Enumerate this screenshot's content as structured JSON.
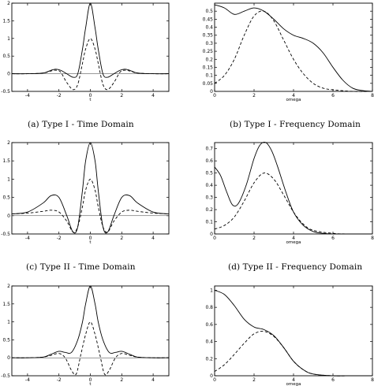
{
  "chart_data": [
    {
      "type": "line",
      "id": "a",
      "title": "(a) Type I - Time Domain",
      "xlabel": "t",
      "ylabel": "",
      "xlim": [
        -5,
        5
      ],
      "ylim": [
        -0.5,
        2
      ],
      "xticks": [
        -4,
        -2,
        0,
        2,
        4
      ],
      "xtick_labels": [
        "-4",
        "-2",
        "0",
        "2",
        "4"
      ],
      "yticks": [
        -0.5,
        0,
        0.5,
        1,
        1.5,
        2
      ],
      "ytick_labels": [
        "-0.5",
        "0",
        "0.5",
        "1",
        "1.5",
        "2"
      ],
      "grid": false,
      "series": [
        {
          "style": "solid",
          "x": [
            -5,
            -4,
            -3,
            -2.5,
            -2.2,
            -1.9,
            -1.5,
            -1.1,
            -0.8,
            -0.5,
            -0.3,
            0,
            0.3,
            0.5,
            0.8,
            1.1,
            1.5,
            1.9,
            2.2,
            2.5,
            3,
            4,
            5
          ],
          "values": [
            0,
            0,
            0.02,
            0.1,
            0.13,
            0.1,
            0,
            -0.1,
            0,
            0.7,
            1.3,
            2.0,
            1.3,
            0.7,
            0,
            -0.1,
            0,
            0.1,
            0.13,
            0.1,
            0.02,
            0,
            0
          ]
        },
        {
          "style": "dashed",
          "x": [
            -5,
            -4,
            -3,
            -2.5,
            -2.2,
            -1.9,
            -1.5,
            -1.1,
            -0.8,
            -0.5,
            -0.3,
            0,
            0.3,
            0.5,
            0.8,
            1.1,
            1.5,
            1.9,
            2.2,
            2.5,
            3,
            4,
            5
          ],
          "values": [
            0,
            0,
            0.02,
            0.08,
            0.1,
            0.05,
            -0.25,
            -0.45,
            -0.3,
            0.3,
            0.7,
            1.0,
            0.7,
            0.3,
            -0.3,
            -0.45,
            -0.25,
            0.05,
            0.1,
            0.08,
            0.02,
            0,
            0
          ]
        }
      ]
    },
    {
      "type": "line",
      "id": "b",
      "title": "(b) Type I - Frequency Domain",
      "xlabel": "omega",
      "ylabel": "",
      "xlim": [
        0,
        8
      ],
      "ylim": [
        0,
        0.55
      ],
      "xticks": [
        0,
        2,
        4,
        6,
        8
      ],
      "xtick_labels": [
        "0",
        "2",
        "4",
        "6",
        "8"
      ],
      "yticks": [
        0,
        0.05,
        0.1,
        0.15,
        0.2,
        0.25,
        0.3,
        0.35,
        0.4,
        0.45,
        0.5
      ],
      "ytick_labels": [
        "0",
        "0.05",
        "0.1",
        "0.15",
        "0.2",
        "0.25",
        "0.3",
        "0.35",
        "0.4",
        "0.45",
        "0.5"
      ],
      "grid": false,
      "series": [
        {
          "style": "solid",
          "x": [
            0,
            0.5,
            1,
            1.5,
            2,
            2.5,
            3,
            3.5,
            4,
            4.5,
            5,
            5.5,
            6,
            6.5,
            7,
            7.5,
            8
          ],
          "values": [
            0.54,
            0.52,
            0.48,
            0.5,
            0.52,
            0.5,
            0.45,
            0.39,
            0.35,
            0.33,
            0.3,
            0.24,
            0.15,
            0.07,
            0.02,
            0.005,
            0
          ]
        },
        {
          "style": "dashed",
          "x": [
            0,
            0.5,
            1,
            1.5,
            2,
            2.5,
            3,
            3.5,
            4,
            4.5,
            5,
            5.5,
            6,
            7,
            8
          ],
          "values": [
            0.05,
            0.1,
            0.2,
            0.35,
            0.47,
            0.5,
            0.44,
            0.32,
            0.2,
            0.11,
            0.05,
            0.02,
            0.01,
            0,
            0
          ]
        }
      ]
    },
    {
      "type": "line",
      "id": "c",
      "title": "(c) Type II - Time Domain",
      "xlabel": "t",
      "ylabel": "",
      "xlim": [
        -5,
        5
      ],
      "ylim": [
        -0.5,
        2
      ],
      "xticks": [
        -4,
        -2,
        0,
        2,
        4
      ],
      "xtick_labels": [
        "-4",
        "-2",
        "0",
        "2",
        "4"
      ],
      "yticks": [
        -0.5,
        0,
        0.5,
        1,
        1.5,
        2
      ],
      "ytick_labels": [
        "-0.5",
        "0",
        "0.5",
        "1",
        "1.5",
        "2"
      ],
      "grid": false,
      "series": [
        {
          "style": "solid",
          "x": [
            -5,
            -4,
            -3,
            -2.5,
            -2,
            -1.5,
            -1.1,
            -0.8,
            -0.5,
            -0.3,
            0,
            0.3,
            0.5,
            0.8,
            1.1,
            1.5,
            2,
            2.5,
            3,
            4,
            5
          ],
          "values": [
            0.05,
            0.1,
            0.35,
            0.55,
            0.5,
            0,
            -0.45,
            -0.3,
            0.7,
            1.5,
            2.0,
            1.5,
            0.7,
            -0.3,
            -0.45,
            0,
            0.5,
            0.55,
            0.35,
            0.1,
            0.05
          ]
        },
        {
          "style": "dashed",
          "x": [
            -5,
            -4,
            -3,
            -2.5,
            -2,
            -1.5,
            -1.1,
            -0.8,
            -0.5,
            -0.3,
            0,
            0.3,
            0.5,
            0.8,
            1.1,
            1.5,
            2,
            2.5,
            3,
            4,
            5
          ],
          "values": [
            0.05,
            0.07,
            0.12,
            0.15,
            0.1,
            -0.15,
            -0.45,
            -0.3,
            0.25,
            0.7,
            1.0,
            0.7,
            0.25,
            -0.3,
            -0.45,
            -0.15,
            0.1,
            0.15,
            0.12,
            0.07,
            0.05
          ]
        }
      ]
    },
    {
      "type": "line",
      "id": "d",
      "title": "(d) Type II - Frequency Domain",
      "xlabel": "omega",
      "ylabel": "",
      "xlim": [
        0,
        8
      ],
      "ylim": [
        0,
        0.75
      ],
      "xticks": [
        0,
        2,
        4,
        6,
        8
      ],
      "xtick_labels": [
        "0",
        "2",
        "4",
        "6",
        "8"
      ],
      "yticks": [
        0,
        0.1,
        0.2,
        0.3,
        0.4,
        0.5,
        0.6,
        0.7
      ],
      "ytick_labels": [
        "0",
        "0.1",
        "0.2",
        "0.3",
        "0.4",
        "0.5",
        "0.6",
        "0.7"
      ],
      "grid": false,
      "series": [
        {
          "style": "solid",
          "x": [
            0,
            0.3,
            0.6,
            0.9,
            1.2,
            1.6,
            2,
            2.3,
            2.6,
            2.9,
            3.2,
            3.6,
            4,
            4.5,
            5,
            5.5,
            6,
            7,
            8
          ],
          "values": [
            0.55,
            0.48,
            0.35,
            0.24,
            0.25,
            0.4,
            0.62,
            0.73,
            0.75,
            0.68,
            0.55,
            0.35,
            0.18,
            0.07,
            0.02,
            0.005,
            0,
            0,
            0
          ]
        },
        {
          "style": "dashed",
          "x": [
            0,
            0.5,
            1,
            1.5,
            2,
            2.5,
            3,
            3.5,
            4,
            4.5,
            5,
            6,
            7,
            8
          ],
          "values": [
            0.04,
            0.07,
            0.14,
            0.27,
            0.42,
            0.5,
            0.45,
            0.32,
            0.18,
            0.08,
            0.03,
            0.005,
            0,
            0
          ]
        }
      ]
    },
    {
      "type": "line",
      "id": "e",
      "title": "",
      "xlabel": "t",
      "ylabel": "",
      "xlim": [
        -5,
        5
      ],
      "ylim": [
        -0.5,
        2
      ],
      "xticks": [
        -4,
        -2,
        0,
        2,
        4
      ],
      "xtick_labels": [
        "-4",
        "-2",
        "0",
        "2",
        "4"
      ],
      "yticks": [
        -0.5,
        0,
        0.5,
        1,
        1.5,
        2
      ],
      "ytick_labels": [
        "-0.5",
        "0",
        "0.5",
        "1",
        "1.5",
        "2"
      ],
      "grid": false,
      "series": [
        {
          "style": "solid",
          "x": [
            -5,
            -4,
            -3,
            -2.5,
            -2,
            -1.6,
            -1.2,
            -0.8,
            -0.5,
            -0.3,
            0,
            0.3,
            0.5,
            0.8,
            1.2,
            1.6,
            2,
            2.5,
            3,
            4,
            5
          ],
          "values": [
            0,
            0,
            0.02,
            0.1,
            0.18,
            0.15,
            0.15,
            0.5,
            1.0,
            1.5,
            2.0,
            1.5,
            1.0,
            0.5,
            0.15,
            0.15,
            0.18,
            0.1,
            0.02,
            0,
            0
          ]
        },
        {
          "style": "dashed",
          "x": [
            -5,
            -4,
            -3,
            -2.5,
            -2,
            -1.6,
            -1.2,
            -0.9,
            -0.6,
            -0.3,
            0,
            0.3,
            0.6,
            0.9,
            1.2,
            1.6,
            2,
            2.5,
            3,
            4,
            5
          ],
          "values": [
            0,
            0,
            0.02,
            0.07,
            0.12,
            0,
            -0.35,
            -0.45,
            0.1,
            0.65,
            1.0,
            0.65,
            0.1,
            -0.45,
            -0.35,
            0,
            0.12,
            0.07,
            0.02,
            0,
            0
          ]
        }
      ]
    },
    {
      "type": "line",
      "id": "f",
      "title": "",
      "xlabel": "omega",
      "ylabel": "",
      "xlim": [
        0,
        8
      ],
      "ylim": [
        0,
        1.05
      ],
      "xticks": [
        0,
        2,
        4,
        6,
        8
      ],
      "xtick_labels": [
        "0",
        "2",
        "4",
        "6",
        "8"
      ],
      "yticks": [
        0,
        0.2,
        0.4,
        0.6,
        0.8,
        1
      ],
      "ytick_labels": [
        "0",
        "0.2",
        "0.4",
        "0.6",
        "0.8",
        "1"
      ],
      "grid": false,
      "series": [
        {
          "style": "solid",
          "x": [
            0,
            0.5,
            1,
            1.5,
            2,
            2.5,
            3,
            3.5,
            4,
            4.5,
            5,
            6,
            7,
            8
          ],
          "values": [
            1.0,
            0.95,
            0.82,
            0.66,
            0.57,
            0.54,
            0.47,
            0.33,
            0.17,
            0.07,
            0.02,
            0,
            0,
            0
          ]
        },
        {
          "style": "dashed",
          "x": [
            0,
            0.5,
            1,
            1.5,
            2,
            2.5,
            3,
            3.5,
            4,
            4.5,
            5,
            6,
            7,
            8
          ],
          "values": [
            0.05,
            0.13,
            0.25,
            0.38,
            0.49,
            0.52,
            0.46,
            0.33,
            0.17,
            0.07,
            0.02,
            0,
            0,
            0
          ]
        }
      ]
    }
  ]
}
